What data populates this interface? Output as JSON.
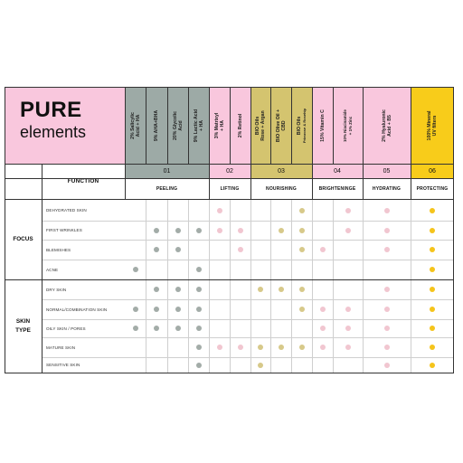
{
  "logo": {
    "line1": "PURE",
    "line2": "elements"
  },
  "colors": {
    "grey": "#9daaa6",
    "pink": "#f9c7dd",
    "olive": "#d4c46f",
    "yellow": "#f8cc1a",
    "dot_grey": "#a3aca8",
    "dot_pink": "#f1c6d0",
    "dot_olive": "#d7c98a",
    "dot_yellow": "#f5c41b"
  },
  "products": [
    {
      "l1": "2% Salicylic",
      "l2": "Acid + HA",
      "color": "grey"
    },
    {
      "l1": "9% AHA+BHA",
      "l2": "",
      "color": "grey"
    },
    {
      "l1": "20% Glycolic",
      "l2": "Acid",
      "color": "grey"
    },
    {
      "l1": "9% Lactic Acid",
      "l2": "+ HA",
      "color": "grey"
    },
    {
      "l1": "3% Matrixyl",
      "l2": "+ HA",
      "color": "pink"
    },
    {
      "l1": "2% Retinol",
      "l2": "",
      "color": "pink"
    },
    {
      "l1": "BIO Oils",
      "l2": "Rose + Argan",
      "color": "olive"
    },
    {
      "l1": "BIO Olive Oil +",
      "l2": "CBD",
      "color": "olive"
    },
    {
      "l1": "BIO Oils",
      "l2": "Primrose & Rosehip",
      "small2": true,
      "color": "olive"
    },
    {
      "l1": "15% Vitamin C",
      "l2": "",
      "color": "pink"
    },
    {
      "l1": "10% Niacinamide",
      "l2": "+ 1% Zinc",
      "small": true,
      "color": "pink"
    },
    {
      "l1": "2% Hyaluronic",
      "l2": "Acid + B5",
      "color": "pink"
    },
    {
      "l1": "100% Mineral",
      "l2": "UV filters",
      "color": "yellow"
    }
  ],
  "groups": [
    {
      "num": "01",
      "func": "PEELING"
    },
    {
      "num": "02",
      "func": "LIFTING"
    },
    {
      "num": "03",
      "func": "NOURISHING"
    },
    {
      "num": "04",
      "func": "BRIGHTENINGE"
    },
    {
      "num": "05",
      "func": "HYDRATING"
    },
    {
      "num": "06",
      "func": "PROTECTING"
    }
  ],
  "function_label": "FUNCTION",
  "sections": [
    {
      "title": "FOCUS",
      "rows": [
        "DEHYDRATED SKIN",
        "FIRST WRINKLES",
        "BLEMISHES",
        "ACNE"
      ]
    },
    {
      "title": "SKIN TYPE",
      "title_l1": "SKIN",
      "title_l2": "TYPE",
      "rows": [
        "DRY SKIN",
        "NORMAL/COMBINATION SKIN",
        "OILY SKIN / PORES",
        "MATURE SKIN",
        "SENSITIVE SKIN"
      ]
    }
  ],
  "matrix": [
    [
      0,
      0,
      0,
      0,
      1,
      0,
      0,
      0,
      1,
      0,
      1,
      1,
      1
    ],
    [
      0,
      1,
      1,
      1,
      1,
      1,
      0,
      1,
      1,
      0,
      1,
      1,
      1
    ],
    [
      0,
      1,
      1,
      0,
      0,
      1,
      0,
      0,
      1,
      1,
      0,
      1,
      1
    ],
    [
      1,
      0,
      0,
      1,
      0,
      0,
      0,
      0,
      0,
      0,
      0,
      0,
      1
    ],
    [
      0,
      1,
      1,
      1,
      0,
      0,
      1,
      1,
      1,
      0,
      0,
      1,
      1
    ],
    [
      1,
      1,
      1,
      1,
      0,
      0,
      0,
      0,
      1,
      1,
      1,
      1,
      1
    ],
    [
      1,
      1,
      1,
      1,
      0,
      0,
      0,
      0,
      0,
      1,
      1,
      1,
      1
    ],
    [
      0,
      0,
      0,
      1,
      1,
      1,
      1,
      1,
      1,
      1,
      1,
      1,
      1
    ],
    [
      0,
      0,
      0,
      1,
      0,
      0,
      1,
      0,
      0,
      0,
      0,
      1,
      1
    ]
  ]
}
